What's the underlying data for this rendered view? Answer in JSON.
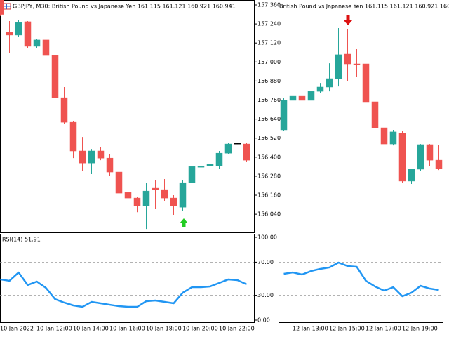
{
  "chart_data": [
    {
      "type": "candlestick",
      "title": "GBPJPY, M30:  British Pound vs Japanese Yen  161.115 161.121 160.921 160.941",
      "categories": [
        "10 Jan 2022",
        null,
        null,
        null,
        "10 Jan 12:00",
        null,
        null,
        null,
        "10 Jan 14:00",
        null,
        null,
        null,
        "10 Jan 16:00",
        null,
        null,
        null,
        "10 Jan 18:00",
        null,
        null,
        null,
        "10 Jan 20:00",
        null,
        null,
        null,
        "10 Jan 22:00",
        null,
        null,
        null
      ],
      "open": [
        157.4,
        157.187,
        157.17,
        157.254,
        157.099,
        157.139,
        157.041,
        156.775,
        156.62,
        156.439,
        156.363,
        156.439,
        156.394,
        156.306,
        156.177,
        156.142,
        156.093,
        156.204,
        156.195,
        156.142,
        156.084,
        156.239,
        156.337,
        156.346,
        156.346,
        156.425,
        156.487,
        156.483
      ],
      "high": [
        157.42,
        157.258,
        157.267,
        157.258,
        157.143,
        157.147,
        157.05,
        156.842,
        156.629,
        156.527,
        156.452,
        156.461,
        156.417,
        156.328,
        156.262,
        156.151,
        156.239,
        156.253,
        156.262,
        156.16,
        156.253,
        156.408,
        156.372,
        156.425,
        156.439,
        156.492,
        156.492,
        156.492
      ],
      "low": [
        157.29,
        157.059,
        157.161,
        157.09,
        157.09,
        157.015,
        156.762,
        156.611,
        156.394,
        156.315,
        156.293,
        156.381,
        156.284,
        156.053,
        156.107,
        156.053,
        155.947,
        156.076,
        156.124,
        156.036,
        156.062,
        156.195,
        156.301,
        156.195,
        156.328,
        156.417,
        156.483,
        156.368
      ],
      "close": [
        157.3,
        157.17,
        157.249,
        157.099,
        157.139,
        157.041,
        156.775,
        156.62,
        156.439,
        156.363,
        156.439,
        156.394,
        156.306,
        156.173,
        156.142,
        156.093,
        156.186,
        156.195,
        156.142,
        156.093,
        156.239,
        156.341,
        156.341,
        156.355,
        156.425,
        156.483,
        156.487,
        156.381
      ],
      "up_color": "#26a69a",
      "down_color": "#ef5350",
      "ylim": [
        155.921,
        157.391
      ],
      "yticks": [
        {
          "value": 157.36,
          "label": "157.360"
        },
        {
          "value": 157.24,
          "label": "157.240"
        },
        {
          "value": 157.12,
          "label": "157.120"
        },
        {
          "value": 157.0,
          "label": "157.000"
        },
        {
          "value": 156.88,
          "label": "156.880"
        },
        {
          "value": 156.76,
          "label": "156.760"
        },
        {
          "value": 156.64,
          "label": "156.640"
        },
        {
          "value": 156.52,
          "label": "156.520"
        },
        {
          "value": 156.4,
          "label": "156.400"
        },
        {
          "value": 156.28,
          "label": "156.280"
        },
        {
          "value": 156.16,
          "label": "156.160"
        },
        {
          "value": 156.04,
          "label": "156.040"
        }
      ],
      "indicator": {
        "type": "line",
        "label": "RSI(14) 51.91",
        "color": "#2196f3",
        "values": [
          49.2,
          47.5,
          57.6,
          42.4,
          46.6,
          39.0,
          25.4,
          21.2,
          17.8,
          16.1,
          22.0,
          20.3,
          18.6,
          16.9,
          16.1,
          16.1,
          22.9,
          23.7,
          22.0,
          20.3,
          33.1,
          39.8,
          39.8,
          40.7,
          44.9,
          49.2,
          48.3,
          43.2
        ],
        "ylim": [
          0,
          100
        ],
        "yticks": [
          {
            "value": 100,
            "label": "100.00"
          },
          {
            "value": 70,
            "label": "70.00"
          },
          {
            "value": 30,
            "label": "30.00"
          },
          {
            "value": 0,
            "label": "0.00"
          }
        ],
        "levels": [
          70,
          30
        ]
      }
    },
    {
      "type": "candlestick",
      "title": "British Pound vs Japanese Yen  161.115 161.121 160.921 160.941",
      "categories": [
        null,
        "12 Jan 13:00",
        null,
        null,
        null,
        "12 Jan 15:00",
        null,
        null,
        null,
        "12 Jan 17:00",
        null,
        null,
        null,
        "12 Jan 19:00",
        null,
        null,
        null,
        null
      ],
      "open": [
        161.161,
        161.347,
        161.373,
        161.347,
        161.404,
        161.431,
        161.484,
        161.639,
        161.577,
        161.577,
        161.338,
        161.174,
        161.072,
        161.139,
        160.838,
        160.913,
        161.068,
        160.97
      ],
      "high": [
        161.36,
        161.382,
        161.391,
        161.418,
        161.457,
        161.581,
        161.803,
        161.794,
        161.67,
        161.581,
        161.347,
        161.183,
        161.161,
        161.152,
        160.917,
        161.072,
        161.072,
        161.068
      ],
      "low": [
        161.156,
        161.316,
        161.334,
        161.28,
        161.395,
        161.404,
        161.435,
        161.471,
        161.493,
        161.272,
        161.17,
        160.984,
        161.063,
        160.829,
        160.82,
        160.904,
        160.931,
        160.908
      ],
      "close": [
        161.347,
        161.373,
        161.347,
        161.404,
        161.431,
        161.484,
        161.635,
        161.577,
        161.573,
        161.338,
        161.174,
        161.072,
        161.148,
        160.838,
        160.913,
        161.068,
        160.97,
        160.917
      ],
      "up_color": "#26a69a",
      "down_color": "#ef5350",
      "ylim": [
        160.51,
        161.98
      ],
      "indicator": {
        "type": "line",
        "color": "#2196f3",
        "values": [
          55.9,
          57.6,
          55.1,
          59.3,
          61.9,
          63.6,
          69.5,
          65.3,
          64.4,
          47.5,
          40.7,
          35.6,
          39.8,
          28.8,
          33.1,
          41.5,
          38.1,
          36.4
        ],
        "ylim": [
          0,
          100
        ],
        "levels": [
          70,
          30
        ]
      }
    }
  ]
}
